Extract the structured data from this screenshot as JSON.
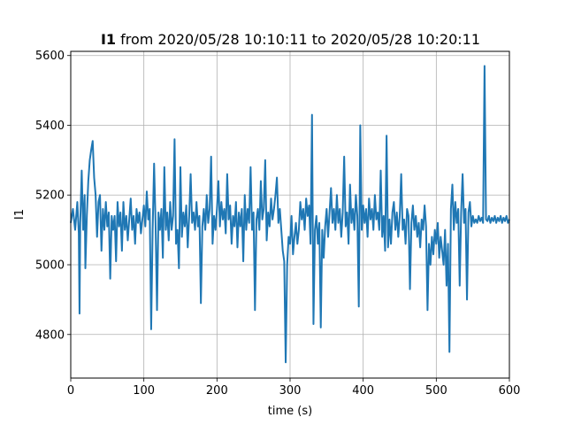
{
  "chart_data": {
    "type": "line",
    "title_bold": "I1",
    "title_rest": " from 2020/05/28 10:10:11 to 2020/05/28 10:20:11",
    "xlabel": "time (s)",
    "ylabel": "I1",
    "xlim": [
      0,
      600
    ],
    "ylim": [
      4675,
      5612
    ],
    "xticks": [
      0,
      100,
      200,
      300,
      400,
      500,
      600
    ],
    "yticks": [
      4800,
      5000,
      5200,
      5400,
      5600
    ],
    "grid": true,
    "series": [
      {
        "color": "#1f77b4",
        "points": [
          [
            0,
            5120
          ],
          [
            3,
            5160
          ],
          [
            6,
            5100
          ],
          [
            9,
            5180
          ],
          [
            11,
            5090
          ],
          [
            12,
            4860
          ],
          [
            13,
            5120
          ],
          [
            15,
            5270
          ],
          [
            17,
            5100
          ],
          [
            19,
            5200
          ],
          [
            20,
            4990
          ],
          [
            22,
            5140
          ],
          [
            24,
            5240
          ],
          [
            26,
            5300
          ],
          [
            28,
            5330
          ],
          [
            30,
            5355
          ],
          [
            32,
            5250
          ],
          [
            34,
            5200
          ],
          [
            36,
            5080
          ],
          [
            38,
            5180
          ],
          [
            40,
            5200
          ],
          [
            42,
            5040
          ],
          [
            44,
            5160
          ],
          [
            46,
            5100
          ],
          [
            48,
            5180
          ],
          [
            50,
            5110
          ],
          [
            52,
            5150
          ],
          [
            54,
            4960
          ],
          [
            56,
            5140
          ],
          [
            58,
            5100
          ],
          [
            60,
            5140
          ],
          [
            62,
            5010
          ],
          [
            64,
            5180
          ],
          [
            66,
            5110
          ],
          [
            68,
            5150
          ],
          [
            70,
            5040
          ],
          [
            72,
            5180
          ],
          [
            74,
            5100
          ],
          [
            76,
            5140
          ],
          [
            78,
            5070
          ],
          [
            80,
            5130
          ],
          [
            82,
            5190
          ],
          [
            84,
            5100
          ],
          [
            86,
            5140
          ],
          [
            88,
            5060
          ],
          [
            90,
            5160
          ],
          [
            92,
            5120
          ],
          [
            94,
            5150
          ],
          [
            96,
            5090
          ],
          [
            98,
            5130
          ],
          [
            100,
            5170
          ],
          [
            102,
            5110
          ],
          [
            104,
            5210
          ],
          [
            106,
            5130
          ],
          [
            108,
            5160
          ],
          [
            110,
            4815
          ],
          [
            112,
            5100
          ],
          [
            114,
            5290
          ],
          [
            116,
            5120
          ],
          [
            118,
            4870
          ],
          [
            120,
            5150
          ],
          [
            122,
            5100
          ],
          [
            124,
            5160
          ],
          [
            126,
            5020
          ],
          [
            128,
            5280
          ],
          [
            130,
            5100
          ],
          [
            132,
            5150
          ],
          [
            134,
            5070
          ],
          [
            136,
            5180
          ],
          [
            138,
            5100
          ],
          [
            140,
            5140
          ],
          [
            142,
            5360
          ],
          [
            144,
            5060
          ],
          [
            146,
            5100
          ],
          [
            148,
            4990
          ],
          [
            150,
            5280
          ],
          [
            152,
            5080
          ],
          [
            154,
            5150
          ],
          [
            156,
            5110
          ],
          [
            158,
            5170
          ],
          [
            160,
            5050
          ],
          [
            162,
            5140
          ],
          [
            164,
            5260
          ],
          [
            166,
            5120
          ],
          [
            168,
            5150
          ],
          [
            170,
            5100
          ],
          [
            172,
            5180
          ],
          [
            174,
            5110
          ],
          [
            176,
            5140
          ],
          [
            178,
            4890
          ],
          [
            180,
            5110
          ],
          [
            182,
            5160
          ],
          [
            184,
            5100
          ],
          [
            186,
            5200
          ],
          [
            188,
            5120
          ],
          [
            190,
            5160
          ],
          [
            192,
            5310
          ],
          [
            194,
            5060
          ],
          [
            196,
            5140
          ],
          [
            198,
            5100
          ],
          [
            200,
            5160
          ],
          [
            202,
            5240
          ],
          [
            204,
            5110
          ],
          [
            206,
            5180
          ],
          [
            208,
            5130
          ],
          [
            210,
            5160
          ],
          [
            212,
            5090
          ],
          [
            214,
            5260
          ],
          [
            216,
            5130
          ],
          [
            218,
            5170
          ],
          [
            220,
            5060
          ],
          [
            222,
            5140
          ],
          [
            224,
            5110
          ],
          [
            226,
            5180
          ],
          [
            228,
            5050
          ],
          [
            230,
            5150
          ],
          [
            232,
            5110
          ],
          [
            234,
            5160
          ],
          [
            236,
            5010
          ],
          [
            238,
            5200
          ],
          [
            240,
            5100
          ],
          [
            242,
            5160
          ],
          [
            244,
            5120
          ],
          [
            246,
            5280
          ],
          [
            248,
            5100
          ],
          [
            250,
            5150
          ],
          [
            252,
            4870
          ],
          [
            254,
            5130
          ],
          [
            256,
            5160
          ],
          [
            258,
            5100
          ],
          [
            260,
            5240
          ],
          [
            262,
            5130
          ],
          [
            264,
            5160
          ],
          [
            266,
            5300
          ],
          [
            268,
            5070
          ],
          [
            270,
            5150
          ],
          [
            272,
            5110
          ],
          [
            274,
            5190
          ],
          [
            276,
            5130
          ],
          [
            278,
            5160
          ],
          [
            280,
            5200
          ],
          [
            282,
            5250
          ],
          [
            284,
            5120
          ],
          [
            286,
            5160
          ],
          [
            288,
            5100
          ],
          [
            290,
            5040
          ],
          [
            292,
            5010
          ],
          [
            294,
            4720
          ],
          [
            296,
            5000
          ],
          [
            298,
            5080
          ],
          [
            300,
            5060
          ],
          [
            302,
            5140
          ],
          [
            304,
            5030
          ],
          [
            306,
            5080
          ],
          [
            308,
            5120
          ],
          [
            310,
            5060
          ],
          [
            312,
            5100
          ],
          [
            314,
            5180
          ],
          [
            316,
            5130
          ],
          [
            318,
            5160
          ],
          [
            320,
            5100
          ],
          [
            322,
            5190
          ],
          [
            324,
            5140
          ],
          [
            326,
            5170
          ],
          [
            328,
            5060
          ],
          [
            330,
            5430
          ],
          [
            332,
            4830
          ],
          [
            334,
            5100
          ],
          [
            336,
            5140
          ],
          [
            338,
            5060
          ],
          [
            340,
            5120
          ],
          [
            342,
            4820
          ],
          [
            344,
            5100
          ],
          [
            346,
            5020
          ],
          [
            348,
            5110
          ],
          [
            350,
            5160
          ],
          [
            352,
            5080
          ],
          [
            354,
            5150
          ],
          [
            356,
            5220
          ],
          [
            358,
            5120
          ],
          [
            360,
            5160
          ],
          [
            362,
            5100
          ],
          [
            364,
            5200
          ],
          [
            366,
            5120
          ],
          [
            368,
            5160
          ],
          [
            370,
            5080
          ],
          [
            372,
            5150
          ],
          [
            374,
            5310
          ],
          [
            376,
            5110
          ],
          [
            378,
            5150
          ],
          [
            380,
            5060
          ],
          [
            382,
            5230
          ],
          [
            384,
            5120
          ],
          [
            386,
            5160
          ],
          [
            388,
            5100
          ],
          [
            390,
            5200
          ],
          [
            392,
            5140
          ],
          [
            394,
            4880
          ],
          [
            396,
            5400
          ],
          [
            398,
            5100
          ],
          [
            400,
            5170
          ],
          [
            402,
            5120
          ],
          [
            404,
            5160
          ],
          [
            406,
            5080
          ],
          [
            408,
            5190
          ],
          [
            410,
            5130
          ],
          [
            412,
            5160
          ],
          [
            414,
            5100
          ],
          [
            416,
            5200
          ],
          [
            418,
            5130
          ],
          [
            420,
            5150
          ],
          [
            422,
            5100
          ],
          [
            424,
            5270
          ],
          [
            426,
            5080
          ],
          [
            428,
            5140
          ],
          [
            430,
            5040
          ],
          [
            432,
            5370
          ],
          [
            434,
            5050
          ],
          [
            436,
            5130
          ],
          [
            438,
            5060
          ],
          [
            440,
            5150
          ],
          [
            442,
            5180
          ],
          [
            444,
            5100
          ],
          [
            446,
            5150
          ],
          [
            448,
            5080
          ],
          [
            450,
            5140
          ],
          [
            452,
            5260
          ],
          [
            454,
            5100
          ],
          [
            456,
            5130
          ],
          [
            458,
            5060
          ],
          [
            460,
            5160
          ],
          [
            462,
            5140
          ],
          [
            464,
            4930
          ],
          [
            466,
            5120
          ],
          [
            468,
            5170
          ],
          [
            470,
            5100
          ],
          [
            472,
            5140
          ],
          [
            474,
            5080
          ],
          [
            476,
            5120
          ],
          [
            478,
            5050
          ],
          [
            480,
            5130
          ],
          [
            482,
            5100
          ],
          [
            484,
            5170
          ],
          [
            486,
            5110
          ],
          [
            488,
            4870
          ],
          [
            490,
            5060
          ],
          [
            492,
            5000
          ],
          [
            494,
            5080
          ],
          [
            496,
            5030
          ],
          [
            498,
            5100
          ],
          [
            500,
            5060
          ],
          [
            502,
            5120
          ],
          [
            504,
            5020
          ],
          [
            506,
            5080
          ],
          [
            508,
            5040
          ],
          [
            510,
            5000
          ],
          [
            512,
            5100
          ],
          [
            514,
            4940
          ],
          [
            516,
            5060
          ],
          [
            518,
            4750
          ],
          [
            520,
            5160
          ],
          [
            522,
            5230
          ],
          [
            524,
            5100
          ],
          [
            526,
            5180
          ],
          [
            528,
            5120
          ],
          [
            530,
            5160
          ],
          [
            532,
            4940
          ],
          [
            534,
            5150
          ],
          [
            536,
            5260
          ],
          [
            538,
            5120
          ],
          [
            540,
            5160
          ],
          [
            542,
            4900
          ],
          [
            544,
            5150
          ],
          [
            546,
            5180
          ],
          [
            548,
            5110
          ],
          [
            550,
            5140
          ],
          [
            552,
            5120
          ],
          [
            554,
            5130
          ],
          [
            556,
            5120
          ],
          [
            558,
            5140
          ],
          [
            560,
            5125
          ],
          [
            562,
            5135
          ],
          [
            564,
            5120
          ],
          [
            566,
            5570
          ],
          [
            568,
            5130
          ],
          [
            570,
            5125
          ],
          [
            572,
            5140
          ],
          [
            574,
            5120
          ],
          [
            576,
            5135
          ],
          [
            578,
            5125
          ],
          [
            580,
            5140
          ],
          [
            582,
            5120
          ],
          [
            584,
            5135
          ],
          [
            586,
            5125
          ],
          [
            588,
            5140
          ],
          [
            590,
            5120
          ],
          [
            592,
            5135
          ],
          [
            594,
            5125
          ],
          [
            596,
            5140
          ],
          [
            598,
            5120
          ],
          [
            600,
            5130
          ]
        ]
      }
    ]
  }
}
